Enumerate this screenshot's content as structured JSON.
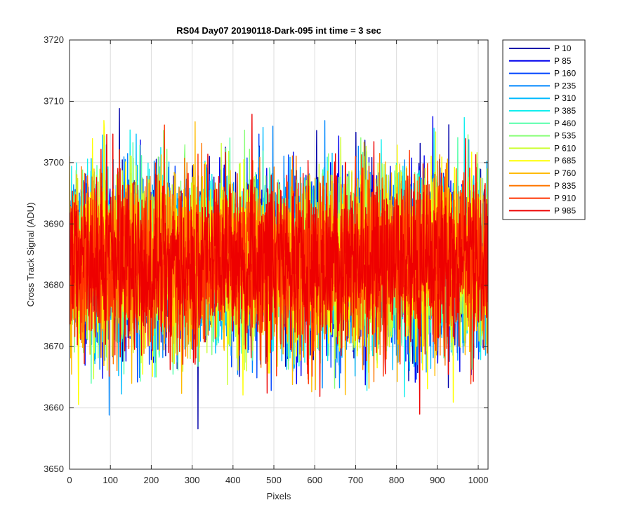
{
  "chart_data": {
    "type": "line",
    "title": "RS04 Day07 20190118-Dark-095 int time = 3 sec",
    "xlabel": "Pixels",
    "ylabel": "Cross Track Signal (ADU)",
    "xlim": [
      0,
      1024
    ],
    "ylim": [
      3650,
      3720
    ],
    "xticks": [
      0,
      100,
      200,
      300,
      400,
      500,
      600,
      700,
      800,
      900,
      1000
    ],
    "yticks": [
      3650,
      3660,
      3670,
      3680,
      3690,
      3700,
      3710,
      3720
    ],
    "grid": true,
    "legend_position": "outside-top-right",
    "noise_model": {
      "n_points": 1024,
      "mean": 3684,
      "std": 7,
      "observed_min": 3654,
      "observed_max": 3714
    },
    "series": [
      {
        "name": "P 10",
        "color": "#0000aa"
      },
      {
        "name": "P 85",
        "color": "#0000ee"
      },
      {
        "name": "P 160",
        "color": "#0044ff"
      },
      {
        "name": "P 235",
        "color": "#0088ff"
      },
      {
        "name": "P 310",
        "color": "#00bbff"
      },
      {
        "name": "P 385",
        "color": "#11eeee"
      },
      {
        "name": "P 460",
        "color": "#55ffaa"
      },
      {
        "name": "P 535",
        "color": "#88ff77"
      },
      {
        "name": "P 610",
        "color": "#ccff33"
      },
      {
        "name": "P 685",
        "color": "#ffff00"
      },
      {
        "name": "P 760",
        "color": "#ffbb00"
      },
      {
        "name": "P 835",
        "color": "#ff7700"
      },
      {
        "name": "P 910",
        "color": "#ff3300"
      },
      {
        "name": "P 985",
        "color": "#ee0000"
      }
    ]
  }
}
